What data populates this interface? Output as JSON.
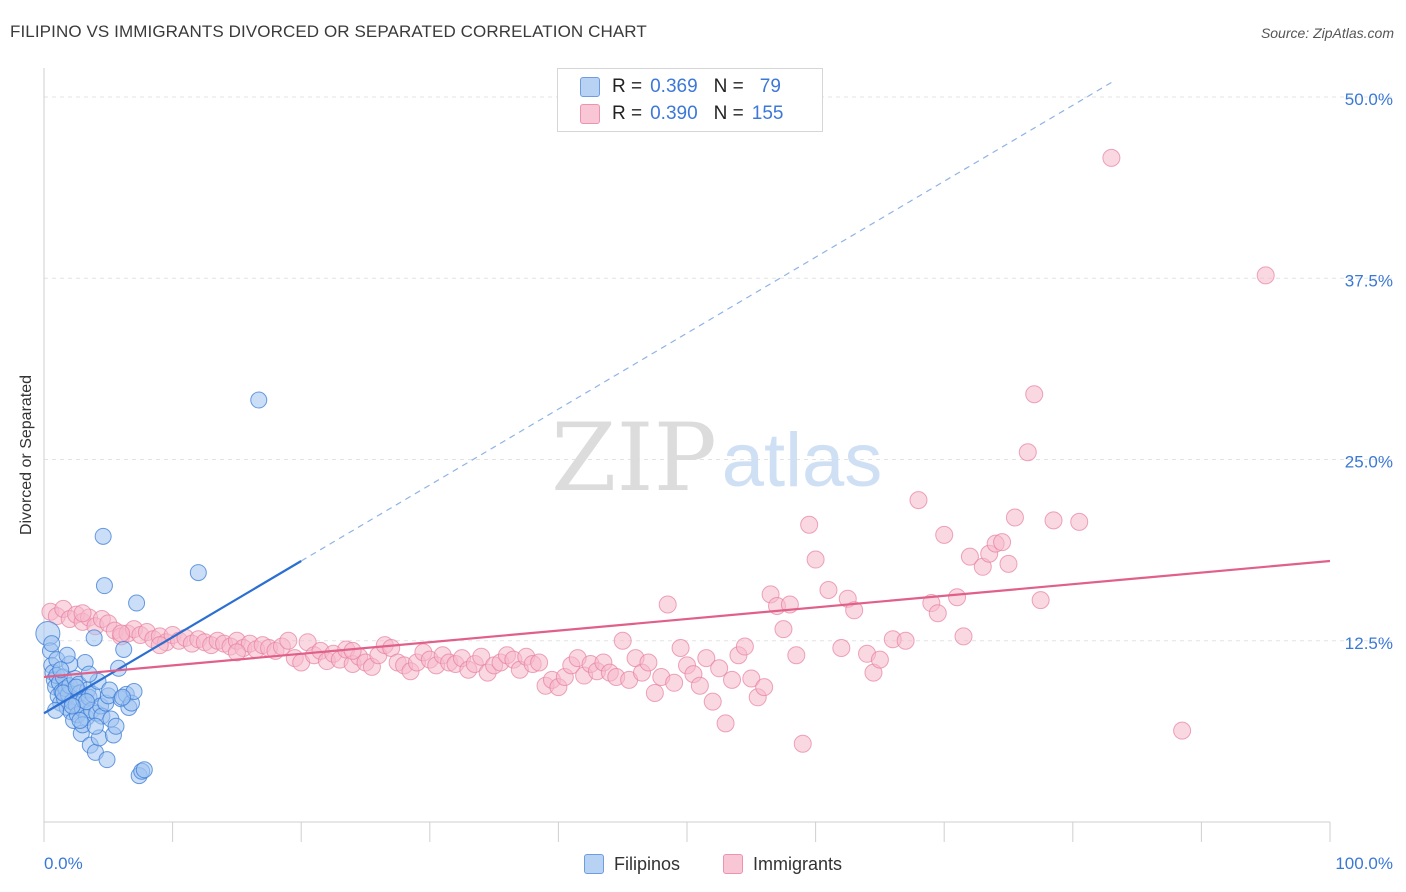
{
  "title": "FILIPINO VS IMMIGRANTS DIVORCED OR SEPARATED CORRELATION CHART",
  "source": "Source: ZipAtlas.com",
  "watermark": {
    "zip": "ZIP",
    "atlas": "atlas"
  },
  "colors": {
    "filipinos_fill": "#9ec2f0",
    "filipinos_stroke": "#3a7bd5",
    "filipinos_line": "#2a6fd1",
    "immigrants_fill": "#f6b8cb",
    "immigrants_stroke": "#e77fa0",
    "immigrants_line": "#e0608a",
    "axis_text": "#3a78d6",
    "grid": "#e3e3e3"
  },
  "legend": {
    "rows": [
      {
        "r_label": "R =",
        "r_value": "0.369",
        "n_label": "N =",
        "n_value": "79"
      },
      {
        "r_label": "R =",
        "r_value": "0.390",
        "n_label": "N =",
        "n_value": "155"
      }
    ]
  },
  "bottom_legend": [
    "Filipinos",
    "Immigrants"
  ],
  "chart_data": {
    "type": "scatter",
    "title": "FILIPINO VS IMMIGRANTS DIVORCED OR SEPARATED CORRELATION CHART",
    "xlabel": "",
    "ylabel": "Divorced or Separated",
    "xlim": [
      0,
      100
    ],
    "ylim": [
      0,
      52
    ],
    "x_tick_labels": [
      "0.0%",
      "100.0%"
    ],
    "y_ticks": [
      12.5,
      25.0,
      37.5,
      50.0
    ],
    "y_tick_labels": [
      "12.5%",
      "25.0%",
      "37.5%",
      "50.0%"
    ],
    "grid": true,
    "legend_position": "top-center",
    "series": [
      {
        "name": "Filipinos",
        "r": 0.369,
        "n": 79,
        "trend": {
          "x0": 0,
          "y0": 7.5,
          "x1": 20,
          "y1": 18.0,
          "dashed_to_x": 83,
          "dashed_to_y": 51.0
        },
        "points": [
          [
            0.3,
            13.0
          ],
          [
            0.5,
            11.8
          ],
          [
            0.6,
            10.8
          ],
          [
            0.7,
            10.3
          ],
          [
            0.8,
            9.8
          ],
          [
            0.9,
            9.3
          ],
          [
            1.0,
            10.1
          ],
          [
            1.1,
            8.7
          ],
          [
            1.2,
            9.6
          ],
          [
            1.3,
            8.2
          ],
          [
            1.4,
            9.0
          ],
          [
            1.5,
            10.0
          ],
          [
            1.6,
            8.5
          ],
          [
            1.7,
            9.2
          ],
          [
            1.8,
            7.9
          ],
          [
            1.9,
            8.8
          ],
          [
            2.0,
            9.4
          ],
          [
            2.1,
            7.6
          ],
          [
            2.2,
            8.3
          ],
          [
            2.3,
            7.0
          ],
          [
            2.4,
            9.9
          ],
          [
            2.5,
            8.1
          ],
          [
            2.6,
            7.4
          ],
          [
            2.7,
            9.5
          ],
          [
            2.8,
            8.9
          ],
          [
            2.9,
            6.1
          ],
          [
            3.0,
            7.8
          ],
          [
            3.1,
            8.4
          ],
          [
            3.2,
            11.0
          ],
          [
            3.3,
            7.2
          ],
          [
            3.4,
            9.1
          ],
          [
            3.5,
            8.6
          ],
          [
            3.6,
            5.3
          ],
          [
            3.7,
            7.7
          ],
          [
            3.8,
            8.8
          ],
          [
            3.9,
            12.7
          ],
          [
            4.0,
            4.8
          ],
          [
            4.1,
            7.5
          ],
          [
            4.2,
            9.7
          ],
          [
            4.3,
            5.8
          ],
          [
            4.4,
            8.0
          ],
          [
            4.5,
            7.3
          ],
          [
            4.6,
            19.7
          ],
          [
            4.7,
            16.3
          ],
          [
            4.8,
            8.2
          ],
          [
            4.9,
            4.3
          ],
          [
            5.0,
            8.7
          ],
          [
            5.2,
            7.1
          ],
          [
            5.4,
            6.0
          ],
          [
            5.6,
            6.6
          ],
          [
            5.8,
            10.6
          ],
          [
            6.0,
            8.5
          ],
          [
            6.2,
            11.9
          ],
          [
            6.4,
            8.8
          ],
          [
            6.6,
            7.9
          ],
          [
            6.8,
            8.2
          ],
          [
            7.0,
            9.0
          ],
          [
            7.2,
            15.1
          ],
          [
            7.4,
            3.2
          ],
          [
            7.6,
            3.5
          ],
          [
            7.8,
            3.6
          ],
          [
            12.0,
            17.2
          ],
          [
            16.7,
            29.1
          ],
          [
            1.0,
            11.2
          ],
          [
            0.6,
            12.3
          ],
          [
            1.5,
            8.9
          ],
          [
            2.0,
            10.9
          ],
          [
            2.5,
            9.3
          ],
          [
            3.0,
            6.7
          ],
          [
            3.5,
            10.2
          ],
          [
            1.8,
            11.5
          ],
          [
            2.8,
            7.0
          ],
          [
            3.3,
            8.3
          ],
          [
            0.9,
            7.7
          ],
          [
            4.0,
            6.6
          ],
          [
            5.1,
            9.1
          ],
          [
            6.1,
            8.6
          ],
          [
            2.2,
            8.0
          ],
          [
            1.3,
            10.5
          ]
        ]
      },
      {
        "name": "Immigrants",
        "r": 0.39,
        "n": 155,
        "trend": {
          "x0": 0,
          "y0": 10.0,
          "x1": 100,
          "y1": 18.0
        },
        "points": [
          [
            0.5,
            14.5
          ],
          [
            1.0,
            14.2
          ],
          [
            1.5,
            14.7
          ],
          [
            2.0,
            14.0
          ],
          [
            2.5,
            14.3
          ],
          [
            3.0,
            13.8
          ],
          [
            3.5,
            14.1
          ],
          [
            4.0,
            13.5
          ],
          [
            4.5,
            14.0
          ],
          [
            5.0,
            13.7
          ],
          [
            5.5,
            13.2
          ],
          [
            6.0,
            12.8
          ],
          [
            6.5,
            13.0
          ],
          [
            7.0,
            13.3
          ],
          [
            7.5,
            12.9
          ],
          [
            8.0,
            13.1
          ],
          [
            8.5,
            12.6
          ],
          [
            9.0,
            12.8
          ],
          [
            9.5,
            12.4
          ],
          [
            10.0,
            12.9
          ],
          [
            10.5,
            12.5
          ],
          [
            11.0,
            12.7
          ],
          [
            11.5,
            12.3
          ],
          [
            12.0,
            12.6
          ],
          [
            12.5,
            12.4
          ],
          [
            13.0,
            12.2
          ],
          [
            13.5,
            12.5
          ],
          [
            14.0,
            12.3
          ],
          [
            14.5,
            12.1
          ],
          [
            15.0,
            12.5
          ],
          [
            15.5,
            12.0
          ],
          [
            16.0,
            12.3
          ],
          [
            16.5,
            11.9
          ],
          [
            17.0,
            12.2
          ],
          [
            17.5,
            12.0
          ],
          [
            18.0,
            11.8
          ],
          [
            18.5,
            12.1
          ],
          [
            19.0,
            12.5
          ],
          [
            19.5,
            11.3
          ],
          [
            20.0,
            11.0
          ],
          [
            20.5,
            12.4
          ],
          [
            21.0,
            11.5
          ],
          [
            21.5,
            11.8
          ],
          [
            22.0,
            11.1
          ],
          [
            22.5,
            11.6
          ],
          [
            23.0,
            11.2
          ],
          [
            23.5,
            11.9
          ],
          [
            24.0,
            10.9
          ],
          [
            24.5,
            11.4
          ],
          [
            25.0,
            11.0
          ],
          [
            25.5,
            10.7
          ],
          [
            26.0,
            11.5
          ],
          [
            26.5,
            12.2
          ],
          [
            27.0,
            12.0
          ],
          [
            27.5,
            11.0
          ],
          [
            28.0,
            10.8
          ],
          [
            28.5,
            10.4
          ],
          [
            29.0,
            11.0
          ],
          [
            29.5,
            11.7
          ],
          [
            30.0,
            11.2
          ],
          [
            30.5,
            10.8
          ],
          [
            31.0,
            11.5
          ],
          [
            31.5,
            11.0
          ],
          [
            32.0,
            10.9
          ],
          [
            32.5,
            11.3
          ],
          [
            33.0,
            10.5
          ],
          [
            33.5,
            10.9
          ],
          [
            34.0,
            11.4
          ],
          [
            34.5,
            10.3
          ],
          [
            35.0,
            10.8
          ],
          [
            35.5,
            11.0
          ],
          [
            36.0,
            11.5
          ],
          [
            36.5,
            11.2
          ],
          [
            37.0,
            10.5
          ],
          [
            37.5,
            11.4
          ],
          [
            38.0,
            10.9
          ],
          [
            38.5,
            11.0
          ],
          [
            39.0,
            9.4
          ],
          [
            39.5,
            9.8
          ],
          [
            40.0,
            9.3
          ],
          [
            40.5,
            10.0
          ],
          [
            41.0,
            10.8
          ],
          [
            41.5,
            11.3
          ],
          [
            42.0,
            10.1
          ],
          [
            42.5,
            10.9
          ],
          [
            43.0,
            10.4
          ],
          [
            43.5,
            11.0
          ],
          [
            44.0,
            10.3
          ],
          [
            44.5,
            10.0
          ],
          [
            45.0,
            12.5
          ],
          [
            45.5,
            9.8
          ],
          [
            46.0,
            11.3
          ],
          [
            46.5,
            10.3
          ],
          [
            47.0,
            11.0
          ],
          [
            47.5,
            8.9
          ],
          [
            48.0,
            10.0
          ],
          [
            48.5,
            15.0
          ],
          [
            49.0,
            9.6
          ],
          [
            49.5,
            12.0
          ],
          [
            50.0,
            10.8
          ],
          [
            50.5,
            10.2
          ],
          [
            51.0,
            9.4
          ],
          [
            51.5,
            11.3
          ],
          [
            52.0,
            8.3
          ],
          [
            52.5,
            10.6
          ],
          [
            53.0,
            6.8
          ],
          [
            53.5,
            9.8
          ],
          [
            54.0,
            11.5
          ],
          [
            54.5,
            12.1
          ],
          [
            55.0,
            9.9
          ],
          [
            55.5,
            8.6
          ],
          [
            56.0,
            9.3
          ],
          [
            56.5,
            15.7
          ],
          [
            57.0,
            14.9
          ],
          [
            57.5,
            13.3
          ],
          [
            58.0,
            15.0
          ],
          [
            58.5,
            11.5
          ],
          [
            59.0,
            5.4
          ],
          [
            59.5,
            20.5
          ],
          [
            60.0,
            18.1
          ],
          [
            61.0,
            16.0
          ],
          [
            62.0,
            12.0
          ],
          [
            62.5,
            15.4
          ],
          [
            63.0,
            14.6
          ],
          [
            64.0,
            11.6
          ],
          [
            64.5,
            10.3
          ],
          [
            65.0,
            11.2
          ],
          [
            66.0,
            12.6
          ],
          [
            67.0,
            12.5
          ],
          [
            68.0,
            22.2
          ],
          [
            69.0,
            15.1
          ],
          [
            69.5,
            14.4
          ],
          [
            70.0,
            19.8
          ],
          [
            71.0,
            15.5
          ],
          [
            71.5,
            12.8
          ],
          [
            72.0,
            18.3
          ],
          [
            73.0,
            17.6
          ],
          [
            73.5,
            18.5
          ],
          [
            74.0,
            19.2
          ],
          [
            74.5,
            19.3
          ],
          [
            75.0,
            17.8
          ],
          [
            75.5,
            21.0
          ],
          [
            76.5,
            25.5
          ],
          [
            77.0,
            29.5
          ],
          [
            77.5,
            15.3
          ],
          [
            78.5,
            20.8
          ],
          [
            80.5,
            20.7
          ],
          [
            83.0,
            45.8
          ],
          [
            88.5,
            6.3
          ],
          [
            95.0,
            37.7
          ],
          [
            3.0,
            14.4
          ],
          [
            6.0,
            13.0
          ],
          [
            9.0,
            12.2
          ],
          [
            15.0,
            11.7
          ],
          [
            24.0,
            11.8
          ]
        ]
      }
    ]
  }
}
